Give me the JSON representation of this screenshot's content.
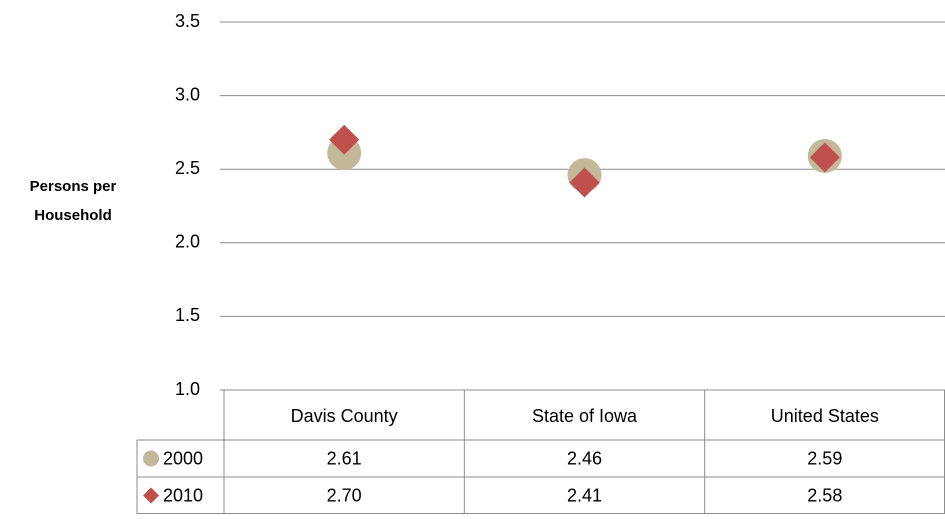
{
  "chart_data": {
    "type": "dot",
    "y_label": "Persons per Household",
    "categories": [
      "Davis County",
      "State of Iowa",
      "United States"
    ],
    "series": [
      {
        "name": "2000",
        "color": "#c4b89a",
        "marker": "circle",
        "values": [
          2.61,
          2.46,
          2.59
        ],
        "value_labels": [
          "2.61",
          "2.46",
          "2.59"
        ]
      },
      {
        "name": "2010",
        "color": "#c0504d",
        "marker": "diamond",
        "values": [
          2.7,
          2.41,
          2.58
        ],
        "value_labels": [
          "2.70",
          "2.41",
          "2.58"
        ]
      }
    ],
    "ylim": [
      1,
      3.5
    ],
    "yticks": [
      {
        "value": 1,
        "label": "1.0"
      },
      {
        "value": 1.5,
        "label": "1.5"
      },
      {
        "value": 2,
        "label": "2.0"
      },
      {
        "value": 2.5,
        "label": "2.5"
      },
      {
        "value": 3,
        "label": "3.0"
      },
      {
        "value": 3.5,
        "label": "3.5"
      }
    ],
    "grid": true,
    "data_table": true
  }
}
